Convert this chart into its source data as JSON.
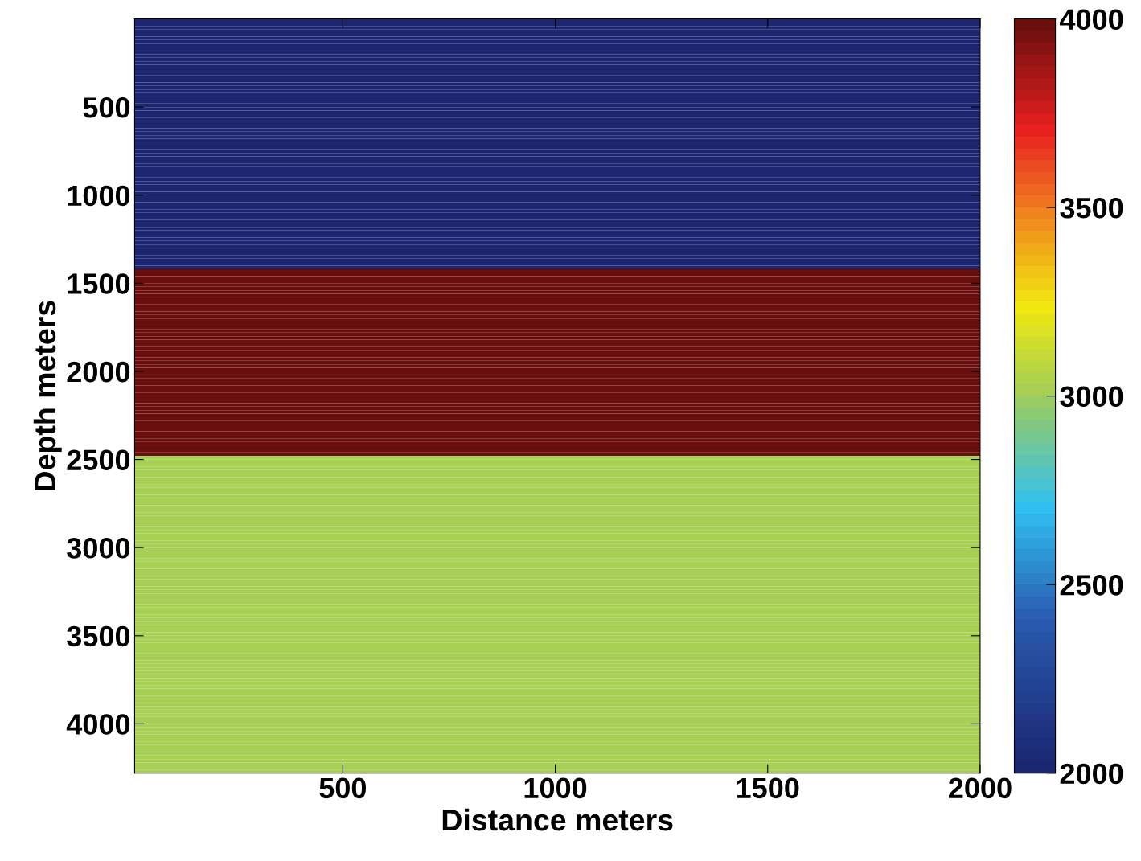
{
  "chart_data": {
    "type": "heatmap",
    "xlabel": "Distance meters",
    "ylabel": "Depth meters",
    "cells": [
      [
        2000
      ],
      [
        2000
      ],
      [
        2000
      ],
      [
        2000
      ],
      [
        2000
      ],
      [
        2000
      ],
      [
        2000
      ],
      [
        2000
      ],
      [
        2000
      ],
      [
        2000
      ],
      [
        2000
      ],
      [
        2000
      ],
      [
        2000
      ],
      [
        2000
      ],
      [
        2000
      ],
      [
        2000
      ],
      [
        2000
      ],
      [
        2000
      ],
      [
        2000
      ],
      [
        2000
      ],
      [
        2000
      ],
      [
        2000
      ],
      [
        2000
      ],
      [
        2000
      ],
      [
        2000
      ],
      [
        2000
      ],
      [
        2000
      ],
      [
        2000
      ],
      [
        2000
      ],
      [
        2000
      ],
      [
        2000
      ],
      [
        2000
      ],
      [
        2000
      ],
      [
        2000
      ],
      [
        2000
      ],
      [
        2000
      ],
      [
        2000
      ],
      [
        2000
      ],
      [
        2000
      ],
      [
        2000
      ],
      [
        2000
      ],
      [
        2000
      ],
      [
        2000
      ],
      [
        2000
      ],
      [
        2000
      ],
      [
        2000
      ],
      [
        2000
      ],
      [
        2000
      ],
      [
        2000
      ],
      [
        2000
      ],
      [
        2000
      ],
      [
        2000
      ],
      [
        2000
      ],
      [
        2000
      ],
      [
        2000
      ],
      [
        2000
      ],
      [
        2000
      ],
      [
        2000
      ],
      [
        2000
      ],
      [
        2000
      ],
      [
        2000
      ],
      [
        2000
      ],
      [
        2000
      ],
      [
        2000
      ],
      [
        2000
      ],
      [
        2000
      ],
      [
        2000
      ],
      [
        2000
      ],
      [
        2000
      ],
      [
        2000
      ],
      [
        2000
      ],
      [
        4000
      ],
      [
        4000
      ],
      [
        4000
      ],
      [
        4000
      ],
      [
        4000
      ],
      [
        4000
      ],
      [
        4000
      ],
      [
        4000
      ],
      [
        4000
      ],
      [
        4000
      ],
      [
        4000
      ],
      [
        4000
      ],
      [
        4000
      ],
      [
        4000
      ],
      [
        4000
      ],
      [
        4000
      ],
      [
        4000
      ],
      [
        4000
      ],
      [
        4000
      ],
      [
        4000
      ],
      [
        4000
      ],
      [
        4000
      ],
      [
        4000
      ],
      [
        4000
      ],
      [
        4000
      ],
      [
        4000
      ],
      [
        4000
      ],
      [
        4000
      ],
      [
        4000
      ],
      [
        4000
      ],
      [
        4000
      ],
      [
        4000
      ],
      [
        4000
      ],
      [
        4000
      ],
      [
        4000
      ],
      [
        4000
      ],
      [
        4000
      ],
      [
        4000
      ],
      [
        4000
      ],
      [
        4000
      ],
      [
        4000
      ],
      [
        4000
      ],
      [
        4000
      ],
      [
        4000
      ],
      [
        4000
      ],
      [
        4000
      ],
      [
        4000
      ],
      [
        4000
      ],
      [
        4000
      ],
      [
        4000
      ],
      [
        4000
      ],
      [
        4000
      ],
      [
        4000
      ],
      [
        3000
      ],
      [
        3000
      ],
      [
        3000
      ],
      [
        3000
      ],
      [
        3000
      ],
      [
        3000
      ],
      [
        3000
      ],
      [
        3000
      ],
      [
        3000
      ],
      [
        3000
      ],
      [
        3000
      ],
      [
        3000
      ],
      [
        3000
      ],
      [
        3000
      ],
      [
        3000
      ],
      [
        3000
      ],
      [
        3000
      ],
      [
        3000
      ],
      [
        3000
      ],
      [
        3000
      ],
      [
        3000
      ],
      [
        3000
      ],
      [
        3000
      ],
      [
        3000
      ],
      [
        3000
      ],
      [
        3000
      ],
      [
        3000
      ],
      [
        3000
      ],
      [
        3000
      ],
      [
        3000
      ],
      [
        3000
      ],
      [
        3000
      ],
      [
        3000
      ],
      [
        3000
      ],
      [
        3000
      ],
      [
        3000
      ],
      [
        3000
      ],
      [
        3000
      ],
      [
        3000
      ],
      [
        3000
      ],
      [
        3000
      ],
      [
        3000
      ],
      [
        3000
      ],
      [
        3000
      ],
      [
        3000
      ],
      [
        3000
      ],
      [
        3000
      ],
      [
        3000
      ],
      [
        3000
      ],
      [
        3000
      ],
      [
        3000
      ],
      [
        3000
      ],
      [
        3000
      ],
      [
        3000
      ],
      [
        3000
      ],
      [
        3000
      ],
      [
        3000
      ],
      [
        3000
      ],
      [
        3000
      ],
      [
        3000
      ],
      [
        3000
      ],
      [
        3000
      ],
      [
        3000
      ],
      [
        3000
      ],
      [
        3000
      ],
      [
        3000
      ],
      [
        3000
      ],
      [
        3000
      ],
      [
        3000
      ],
      [
        3000
      ],
      [
        3000
      ],
      [
        3000
      ],
      [
        3000
      ],
      [
        3000
      ],
      [
        3000
      ],
      [
        3000
      ],
      [
        3000
      ],
      [
        3000
      ],
      [
        3000
      ],
      [
        3000
      ],
      [
        3000
      ],
      [
        3000
      ],
      [
        3000
      ],
      [
        3000
      ],
      [
        3000
      ],
      [
        3000
      ],
      [
        3000
      ],
      [
        3000
      ],
      [
        3000
      ],
      [
        3000
      ]
    ],
    "xlim": [
      10,
      2000
    ],
    "ylim": [
      4280,
      0
    ],
    "xticks": [
      500,
      1000,
      1500,
      2000
    ],
    "yticks": [
      500,
      1000,
      1500,
      2000,
      2500,
      3000,
      3500,
      4000
    ],
    "clim": [
      2000,
      4000
    ],
    "cticks": [
      2000,
      2500,
      3000,
      3500,
      4000
    ]
  }
}
